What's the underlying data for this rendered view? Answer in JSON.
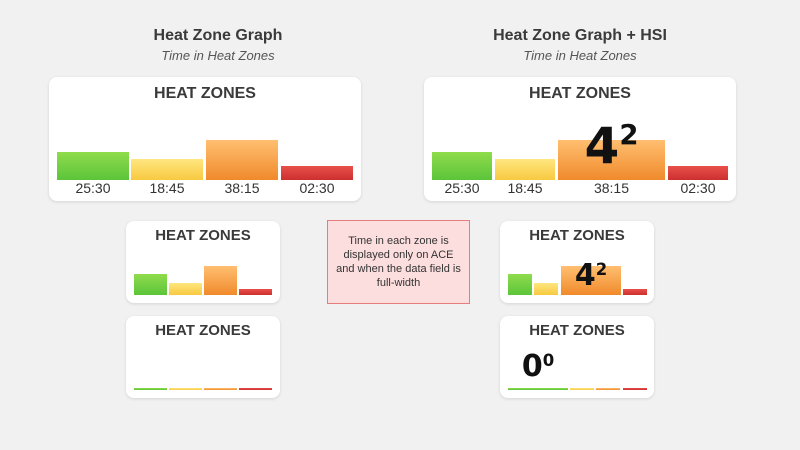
{
  "columns": {
    "left": {
      "title": "Heat Zone Graph",
      "subtitle": "Time in Heat Zones"
    },
    "right": {
      "title": "Heat Zone Graph + HSI",
      "subtitle": "Time in Heat Zones"
    }
  },
  "card_title": "HEAT ZONES",
  "zone_times": [
    "25:30",
    "18:45",
    "38:15",
    "02:30"
  ],
  "zone_levels": [
    0.54,
    0.41,
    0.79,
    0.23
  ],
  "hsi_values": [
    {
      "main": "4",
      "sup": "2"
    },
    {
      "main": "0",
      "sup": "0"
    }
  ],
  "note": "Time in each zone is displayed only on ACE and when the data field is full-width",
  "colors": {
    "zone1": "#6fcf3f",
    "zone2": "#f9d35a",
    "zone3": "#f39a3e",
    "zone4": "#d83a3a",
    "note_bg": "#fddede",
    "note_border": "#e57d7d"
  }
}
